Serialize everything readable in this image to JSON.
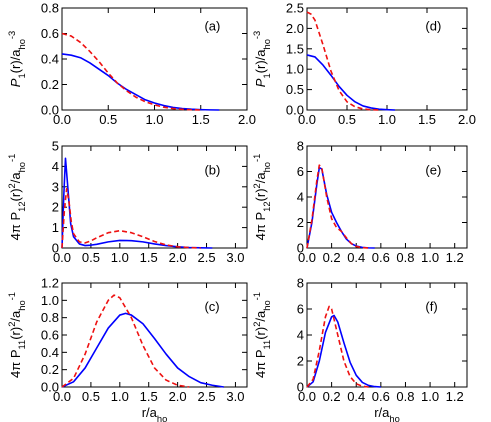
{
  "figure": {
    "series_styles": [
      {
        "color": "#0000ff",
        "dash": "solid"
      },
      {
        "color": "#ee1111",
        "dash": "dashed"
      }
    ]
  },
  "chart_data": [
    {
      "panel": "(a)",
      "type": "line",
      "ylabel": "P_1(r)/a_ho^-3",
      "xlabel": "",
      "xlim": [
        0,
        2
      ],
      "ylim": [
        0,
        0.8
      ],
      "xticks": [
        "0.0",
        "0.5",
        "1.0",
        "1.5",
        "2.0"
      ],
      "yticks": [
        "0.0",
        "0.2",
        "0.4",
        "0.6",
        "0.8"
      ],
      "series": [
        {
          "x": [
            0,
            0.1,
            0.2,
            0.3,
            0.4,
            0.5,
            0.6,
            0.7,
            0.8,
            0.9,
            1.0,
            1.1,
            1.2,
            1.3,
            1.4,
            1.5,
            1.6,
            1.7
          ],
          "y": [
            0.44,
            0.43,
            0.41,
            0.37,
            0.32,
            0.27,
            0.21,
            0.16,
            0.12,
            0.08,
            0.055,
            0.035,
            0.02,
            0.011,
            0.006,
            0.003,
            0.001,
            0.0
          ]
        },
        {
          "x": [
            0,
            0.1,
            0.2,
            0.3,
            0.4,
            0.5,
            0.6,
            0.7,
            0.8,
            0.9,
            1.0,
            1.1,
            1.2,
            1.3,
            1.4,
            1.5
          ],
          "y": [
            0.6,
            0.58,
            0.53,
            0.46,
            0.38,
            0.29,
            0.21,
            0.15,
            0.1,
            0.065,
            0.04,
            0.022,
            0.011,
            0.005,
            0.002,
            0.0
          ]
        }
      ]
    },
    {
      "panel": "(b)",
      "type": "line",
      "ylabel": "4π P_12(r)^2/a_ho^-1",
      "xlabel": "",
      "xlim": [
        0,
        3.2
      ],
      "ylim": [
        0,
        5
      ],
      "xticks": [
        "0.0",
        "0.5",
        "1.0",
        "1.5",
        "2.0",
        "2.5",
        "3.0"
      ],
      "yticks": [
        "0",
        "1",
        "2",
        "3",
        "4",
        "5"
      ],
      "series": [
        {
          "x": [
            0,
            0.03,
            0.06,
            0.1,
            0.15,
            0.2,
            0.3,
            0.4,
            0.5,
            0.6,
            0.8,
            1.0,
            1.2,
            1.4,
            1.6,
            1.8,
            2.0,
            2.2,
            2.4,
            2.6
          ],
          "y": [
            0,
            2.5,
            4.4,
            3.0,
            1.2,
            0.55,
            0.2,
            0.12,
            0.14,
            0.18,
            0.3,
            0.37,
            0.36,
            0.3,
            0.2,
            0.12,
            0.06,
            0.025,
            0.01,
            0.0
          ]
        },
        {
          "x": [
            0,
            0.04,
            0.08,
            0.12,
            0.16,
            0.2,
            0.3,
            0.4,
            0.5,
            0.6,
            0.8,
            1.0,
            1.2,
            1.4,
            1.6,
            1.8,
            2.0,
            2.2,
            2.4
          ],
          "y": [
            0,
            1.8,
            2.9,
            2.3,
            1.3,
            0.7,
            0.3,
            0.25,
            0.35,
            0.5,
            0.75,
            0.85,
            0.75,
            0.55,
            0.32,
            0.15,
            0.06,
            0.02,
            0.0
          ]
        }
      ]
    },
    {
      "panel": "(c)",
      "type": "line",
      "ylabel": "4π P_11(r)^2/a_ho^-1",
      "xlabel": "r/a_ho",
      "xlim": [
        0,
        3.2
      ],
      "ylim": [
        0,
        1.2
      ],
      "xticks": [
        "0.0",
        "0.5",
        "1.0",
        "1.5",
        "2.0",
        "2.5",
        "3.0"
      ],
      "yticks": [
        "0.0",
        "0.2",
        "0.4",
        "0.6",
        "0.8",
        "1.0",
        "1.2"
      ],
      "series": [
        {
          "x": [
            0,
            0.2,
            0.4,
            0.6,
            0.8,
            1.0,
            1.1,
            1.2,
            1.4,
            1.6,
            1.8,
            2.0,
            2.2,
            2.4,
            2.6,
            2.8
          ],
          "y": [
            0,
            0.06,
            0.22,
            0.45,
            0.68,
            0.83,
            0.85,
            0.83,
            0.73,
            0.56,
            0.38,
            0.22,
            0.12,
            0.05,
            0.02,
            0.0
          ]
        },
        {
          "x": [
            0,
            0.2,
            0.4,
            0.6,
            0.8,
            0.9,
            1.0,
            1.2,
            1.4,
            1.6,
            1.8,
            2.0,
            2.2
          ],
          "y": [
            0,
            0.1,
            0.38,
            0.75,
            1.0,
            1.06,
            1.03,
            0.8,
            0.48,
            0.22,
            0.08,
            0.02,
            0.0
          ]
        }
      ]
    },
    {
      "panel": "(d)",
      "type": "line",
      "ylabel": "P_1(r)/a_ho^-3",
      "xlabel": "",
      "xlim": [
        0,
        2
      ],
      "ylim": [
        0,
        2.5
      ],
      "xticks": [
        "0.0",
        "0.5",
        "1.0",
        "1.5",
        "2.0"
      ],
      "yticks": [
        "0.0",
        "0.5",
        "1.0",
        "1.5",
        "2.0",
        "2.5"
      ],
      "series": [
        {
          "x": [
            0,
            0.1,
            0.2,
            0.3,
            0.4,
            0.5,
            0.6,
            0.7,
            0.8,
            0.9,
            1.0,
            1.1
          ],
          "y": [
            1.35,
            1.3,
            1.1,
            0.85,
            0.58,
            0.36,
            0.2,
            0.1,
            0.05,
            0.02,
            0.008,
            0.0
          ]
        },
        {
          "x": [
            0,
            0.05,
            0.1,
            0.2,
            0.3,
            0.4,
            0.5,
            0.6,
            0.7,
            0.8,
            0.9
          ],
          "y": [
            2.4,
            2.35,
            2.2,
            1.6,
            0.95,
            0.48,
            0.2,
            0.08,
            0.025,
            0.006,
            0.0
          ]
        }
      ]
    },
    {
      "panel": "(e)",
      "type": "line",
      "ylabel": "4π P_12(r)^2/a_ho^-1",
      "xlabel": "",
      "xlim": [
        0,
        1.3
      ],
      "ylim": [
        0,
        8
      ],
      "xticks": [
        "0.0",
        "0.2",
        "0.4",
        "0.6",
        "0.8",
        "1.0",
        "1.2"
      ],
      "yticks": [
        "0",
        "2",
        "4",
        "6",
        "8"
      ],
      "series": [
        {
          "x": [
            0,
            0.04,
            0.08,
            0.1,
            0.12,
            0.16,
            0.2,
            0.24,
            0.28,
            0.32,
            0.36,
            0.4,
            0.45,
            0.5,
            0.55
          ],
          "y": [
            0,
            2.0,
            5.0,
            6.3,
            6.2,
            4.2,
            2.8,
            2.0,
            1.3,
            0.7,
            0.35,
            0.15,
            0.05,
            0.01,
            0.0
          ]
        },
        {
          "x": [
            0,
            0.04,
            0.08,
            0.1,
            0.12,
            0.16,
            0.2,
            0.24,
            0.28,
            0.32,
            0.36,
            0.4,
            0.45,
            0.5
          ],
          "y": [
            0,
            2.2,
            5.3,
            6.5,
            6.3,
            4.0,
            2.3,
            1.6,
            1.3,
            0.8,
            0.35,
            0.12,
            0.03,
            0.0
          ]
        }
      ]
    },
    {
      "panel": "(f)",
      "type": "line",
      "ylabel": "4π P_11(r)^2/a_ho^-1",
      "xlabel": "r/a_ho",
      "xlim": [
        0,
        1.3
      ],
      "ylim": [
        0,
        8
      ],
      "xticks": [
        "0.0",
        "0.2",
        "0.4",
        "0.6",
        "0.8",
        "1.0",
        "1.2"
      ],
      "yticks": [
        "0",
        "2",
        "4",
        "6",
        "8"
      ],
      "series": [
        {
          "x": [
            0,
            0.05,
            0.1,
            0.15,
            0.2,
            0.22,
            0.25,
            0.3,
            0.35,
            0.4,
            0.45,
            0.5,
            0.55,
            0.6
          ],
          "y": [
            0,
            0.4,
            2.0,
            4.2,
            5.4,
            5.5,
            5.0,
            3.4,
            1.9,
            0.9,
            0.35,
            0.12,
            0.03,
            0.0
          ]
        },
        {
          "x": [
            0,
            0.05,
            0.1,
            0.15,
            0.18,
            0.2,
            0.25,
            0.3,
            0.35,
            0.4,
            0.45,
            0.5
          ],
          "y": [
            0,
            0.6,
            2.8,
            5.4,
            6.2,
            6.0,
            4.0,
            2.0,
            0.8,
            0.25,
            0.06,
            0.0
          ]
        }
      ]
    }
  ]
}
